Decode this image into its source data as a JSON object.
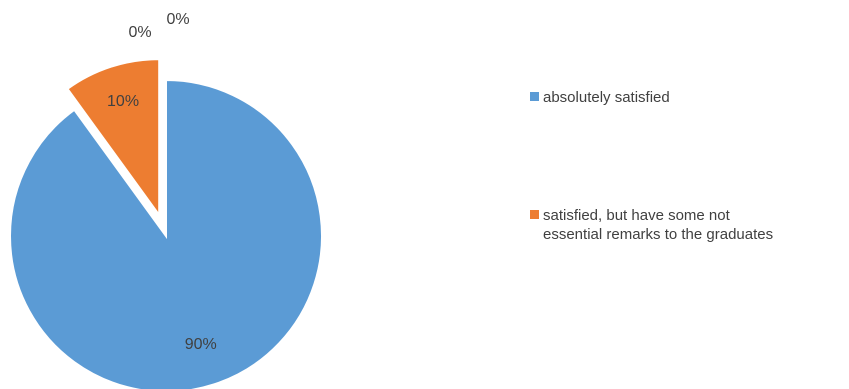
{
  "chart_data": {
    "type": "pie",
    "series": [
      {
        "values": [
          90,
          10,
          0,
          0
        ],
        "labels": [
          "90%",
          "10%",
          "0%",
          "0%"
        ]
      }
    ],
    "categories": [
      "absolutely satisfied",
      "satisfied, but have some not essential remarks to the graduates",
      "",
      ""
    ],
    "legend_lines": [
      [
        "absolutely satisfied"
      ],
      [
        "satisfied, but have some not",
        "essential remarks to the graduates"
      ]
    ],
    "colors": [
      "#5b9bd5",
      "#ed7d31"
    ],
    "exploded_slice": 1,
    "legend_position": "right"
  }
}
